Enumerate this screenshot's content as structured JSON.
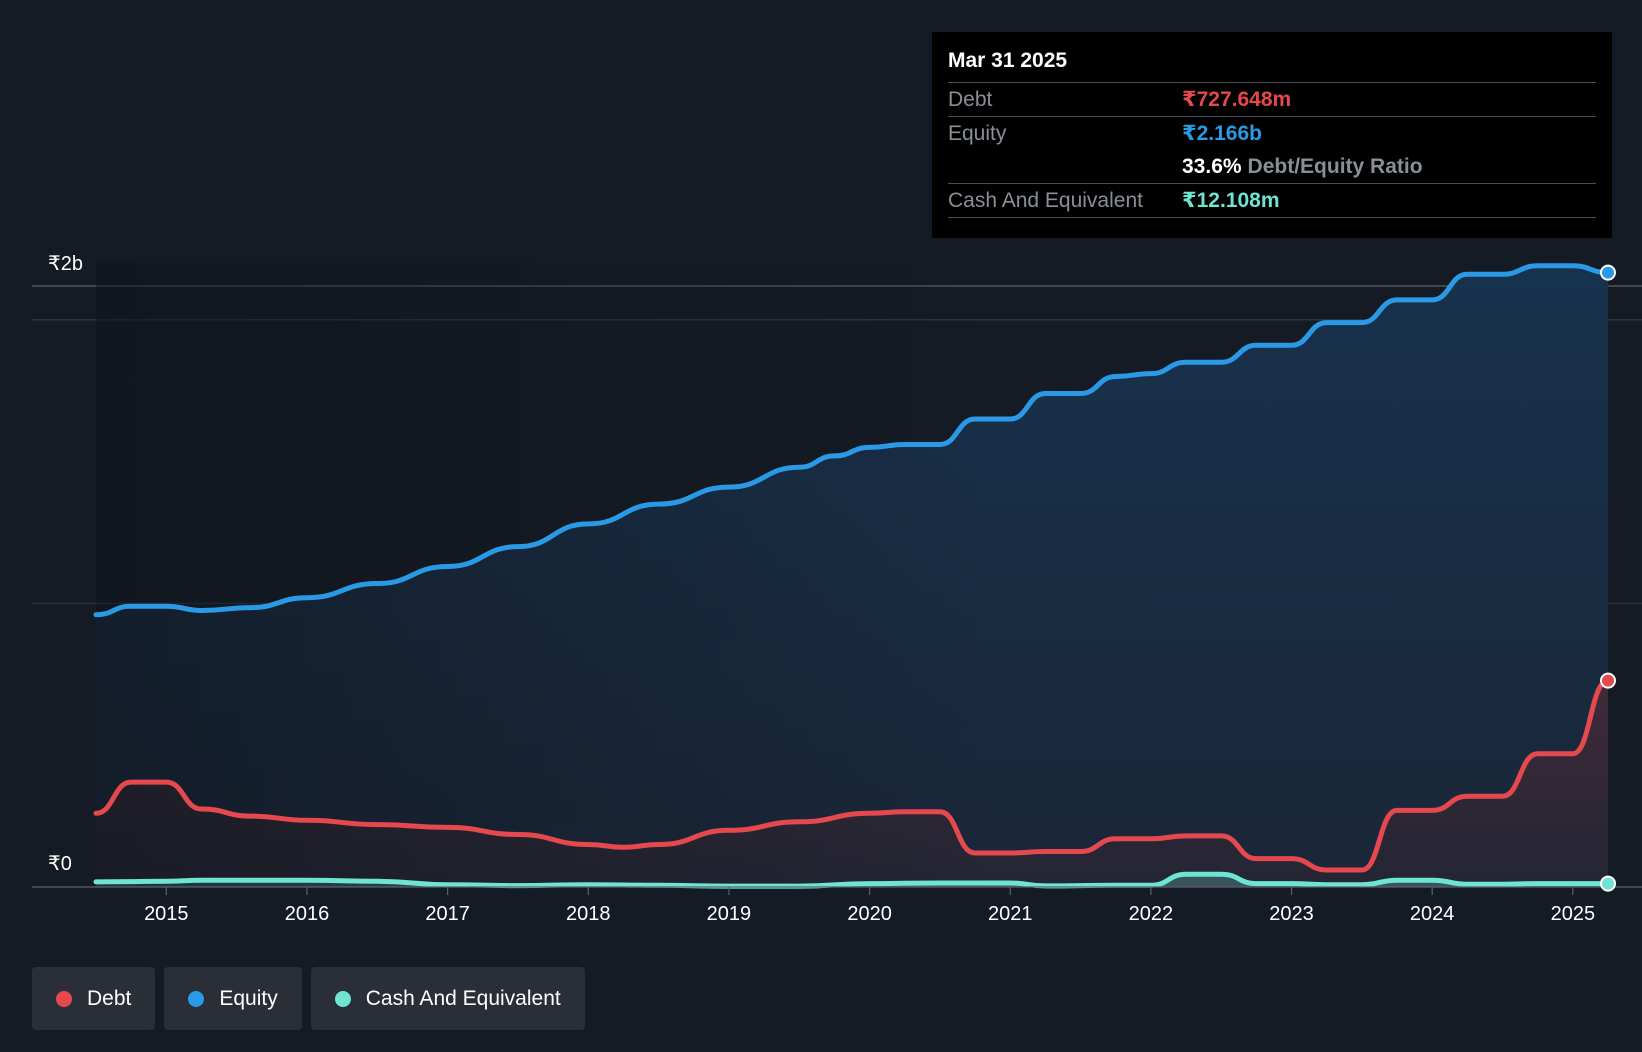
{
  "tooltip": {
    "date": "Mar 31 2025",
    "debt_label": "Debt",
    "debt_value": "₹727.648m",
    "equity_label": "Equity",
    "equity_value": "₹2.166b",
    "ratio_pct": "33.6%",
    "ratio_label": "Debt/Equity Ratio",
    "cash_label": "Cash And Equivalent",
    "cash_value": "₹12.108m"
  },
  "legend": {
    "debt": "Debt",
    "equity": "Equity",
    "cash": "Cash And Equivalent"
  },
  "colors": {
    "debt": "#e5484d",
    "equity": "#2a9ae6",
    "cash": "#6ee5d2",
    "background": "#151b24",
    "tooltip_bg": "#000000"
  },
  "chart_data": {
    "type": "area",
    "title": "",
    "xlabel": "",
    "ylabel": "",
    "y_top_label": "₹2b",
    "y_bottom_label": "₹0",
    "ylim": [
      0,
      2.2
    ],
    "xlim": [
      2014.5,
      2025.25
    ],
    "x_ticks": [
      2015,
      2016,
      2017,
      2018,
      2019,
      2020,
      2021,
      2022,
      2023,
      2024,
      2025
    ],
    "gridlines": [
      2.0,
      1.0
    ],
    "series": [
      {
        "name": "Equity",
        "unit": "₹b",
        "points": [
          [
            2014.5,
            0.96
          ],
          [
            2014.75,
            0.99
          ],
          [
            2015.0,
            0.99
          ],
          [
            2015.25,
            0.975
          ],
          [
            2015.6,
            0.985
          ],
          [
            2016.0,
            1.02
          ],
          [
            2016.5,
            1.07
          ],
          [
            2017.0,
            1.13
          ],
          [
            2017.5,
            1.2
          ],
          [
            2018.0,
            1.28
          ],
          [
            2018.5,
            1.35
          ],
          [
            2019.0,
            1.41
          ],
          [
            2019.5,
            1.48
          ],
          [
            2019.75,
            1.52
          ],
          [
            2020.0,
            1.55
          ],
          [
            2020.25,
            1.56
          ],
          [
            2020.5,
            1.56
          ],
          [
            2020.75,
            1.65
          ],
          [
            2021.0,
            1.65
          ],
          [
            2021.25,
            1.74
          ],
          [
            2021.5,
            1.74
          ],
          [
            2021.75,
            1.8
          ],
          [
            2022.0,
            1.81
          ],
          [
            2022.25,
            1.85
          ],
          [
            2022.5,
            1.85
          ],
          [
            2022.75,
            1.91
          ],
          [
            2023.0,
            1.91
          ],
          [
            2023.25,
            1.99
          ],
          [
            2023.5,
            1.99
          ],
          [
            2023.75,
            2.07
          ],
          [
            2024.0,
            2.07
          ],
          [
            2024.25,
            2.16
          ],
          [
            2024.5,
            2.16
          ],
          [
            2024.75,
            2.19
          ],
          [
            2025.0,
            2.19
          ],
          [
            2025.25,
            2.166
          ]
        ]
      },
      {
        "name": "Debt",
        "unit": "₹b",
        "points": [
          [
            2014.5,
            0.26
          ],
          [
            2014.75,
            0.37
          ],
          [
            2015.0,
            0.37
          ],
          [
            2015.25,
            0.275
          ],
          [
            2015.6,
            0.25
          ],
          [
            2016.0,
            0.235
          ],
          [
            2016.5,
            0.22
          ],
          [
            2017.0,
            0.21
          ],
          [
            2017.5,
            0.185
          ],
          [
            2018.0,
            0.15
          ],
          [
            2018.25,
            0.14
          ],
          [
            2018.5,
            0.15
          ],
          [
            2019.0,
            0.2
          ],
          [
            2019.5,
            0.23
          ],
          [
            2020.0,
            0.26
          ],
          [
            2020.25,
            0.265
          ],
          [
            2020.5,
            0.265
          ],
          [
            2020.75,
            0.12
          ],
          [
            2021.0,
            0.12
          ],
          [
            2021.25,
            0.125
          ],
          [
            2021.5,
            0.125
          ],
          [
            2021.75,
            0.17
          ],
          [
            2022.0,
            0.17
          ],
          [
            2022.25,
            0.18
          ],
          [
            2022.5,
            0.18
          ],
          [
            2022.75,
            0.1
          ],
          [
            2023.0,
            0.1
          ],
          [
            2023.25,
            0.06
          ],
          [
            2023.5,
            0.06
          ],
          [
            2023.75,
            0.27
          ],
          [
            2024.0,
            0.27
          ],
          [
            2024.25,
            0.32
          ],
          [
            2024.5,
            0.32
          ],
          [
            2024.75,
            0.47
          ],
          [
            2025.0,
            0.47
          ],
          [
            2025.25,
            0.727648
          ]
        ]
      },
      {
        "name": "Cash And Equivalent",
        "unit": "₹b",
        "points": [
          [
            2014.5,
            0.018
          ],
          [
            2015.0,
            0.02
          ],
          [
            2015.25,
            0.024
          ],
          [
            2016.0,
            0.024
          ],
          [
            2016.5,
            0.02
          ],
          [
            2017.0,
            0.008
          ],
          [
            2017.5,
            0.005
          ],
          [
            2018.0,
            0.008
          ],
          [
            2018.5,
            0.006
          ],
          [
            2019.0,
            0.003
          ],
          [
            2019.5,
            0.003
          ],
          [
            2020.0,
            0.012
          ],
          [
            2020.5,
            0.014
          ],
          [
            2021.0,
            0.014
          ],
          [
            2021.25,
            0.004
          ],
          [
            2021.75,
            0.006
          ],
          [
            2022.0,
            0.006
          ],
          [
            2022.25,
            0.045
          ],
          [
            2022.5,
            0.045
          ],
          [
            2022.75,
            0.012
          ],
          [
            2023.0,
            0.012
          ],
          [
            2023.25,
            0.008
          ],
          [
            2023.5,
            0.008
          ],
          [
            2023.75,
            0.024
          ],
          [
            2024.0,
            0.024
          ],
          [
            2024.25,
            0.01
          ],
          [
            2024.5,
            0.01
          ],
          [
            2024.75,
            0.012
          ],
          [
            2025.0,
            0.012
          ],
          [
            2025.25,
            0.012108
          ]
        ]
      }
    ]
  }
}
